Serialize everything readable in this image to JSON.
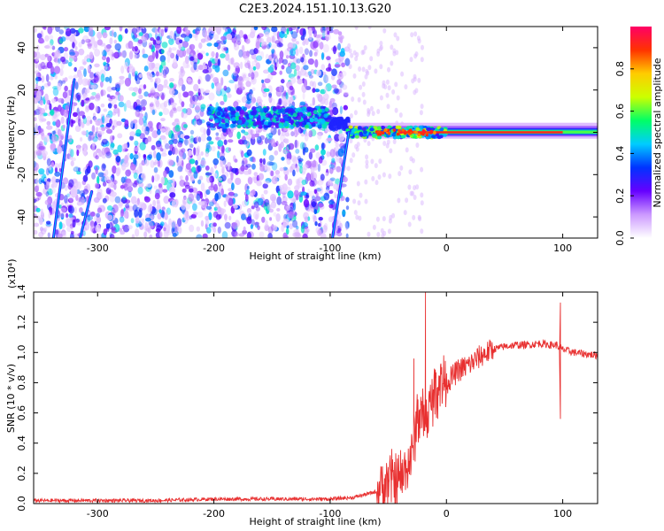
{
  "title": "C2E3.2024.151.10.13.G20",
  "chart_data": [
    {
      "type": "heatmap",
      "xlabel": "Height of straight line (km)",
      "ylabel": "Frequency (Hz)",
      "xlim": [
        -355,
        130
      ],
      "ylim": [
        -50,
        50
      ],
      "x_ticks": [
        -300,
        -200,
        -100,
        0,
        100
      ],
      "y_ticks": [
        -40,
        -20,
        0,
        20,
        40
      ],
      "colorbar": {
        "label": "Normalized spectral amplitude",
        "range": [
          0.0,
          1.0
        ],
        "ticks": [
          0.0,
          0.2,
          0.4,
          0.6,
          0.8
        ],
        "colormap": [
          "#ffffff",
          "#cc99ff",
          "#6600ff",
          "#0033ff",
          "#00ccff",
          "#00ff66",
          "#ccff00",
          "#ffcc00",
          "#ff3300",
          "#ff0066"
        ]
      },
      "features": [
        {
          "name": "scattered noise",
          "x_range": [
            -355,
            -85
          ],
          "y_range": [
            -50,
            50
          ],
          "level": 0.15
        },
        {
          "name": "band near 7 Hz",
          "x_range": [
            -205,
            -100
          ],
          "y_center": 7,
          "level": 0.3
        },
        {
          "name": "carrier line at 0 Hz",
          "x_range": [
            -85,
            130
          ],
          "y_center": 0,
          "level": 0.9
        },
        {
          "name": "diagonal streak",
          "points": [
            [
              -338,
              -50
            ],
            [
              -320,
              25
            ]
          ]
        },
        {
          "name": "diagonal streak",
          "points": [
            [
              -315,
              -50
            ],
            [
              -305,
              -28
            ]
          ]
        },
        {
          "name": "diagonal streak",
          "points": [
            [
              -98,
              -50
            ],
            [
              -84,
              0
            ]
          ]
        }
      ]
    },
    {
      "type": "line",
      "xlabel": "Height of straight line (km)",
      "ylabel": "SNR (10 * v/v)",
      "y_multiplier_label": "(x10⁴)",
      "xlim": [
        -355,
        130
      ],
      "ylim": [
        0.0,
        1.4
      ],
      "x_ticks": [
        -300,
        -200,
        -100,
        0,
        100
      ],
      "y_ticks": [
        0.0,
        0.2,
        0.4,
        0.6,
        0.8,
        1.0,
        1.2,
        1.4
      ],
      "color": "#e83030",
      "series": [
        {
          "x": [
            -355,
            -300,
            -250,
            -200,
            -150,
            -100,
            -80,
            -60,
            -50,
            -40,
            -30,
            -25,
            -20,
            -15,
            -10,
            -5,
            0,
            10,
            20,
            30,
            40,
            50,
            60,
            70,
            80,
            90,
            95,
            97,
            100,
            110,
            120,
            130
          ],
          "y": [
            0.02,
            0.02,
            0.02,
            0.03,
            0.03,
            0.03,
            0.04,
            0.08,
            0.15,
            0.15,
            0.3,
            0.6,
            0.55,
            0.6,
            0.75,
            0.82,
            0.8,
            0.88,
            0.92,
            0.98,
            1.02,
            1.04,
            1.05,
            1.05,
            1.06,
            1.05,
            1.05,
            1.03,
            1.02,
            1.0,
            0.99,
            0.98
          ]
        }
      ],
      "annotations": [
        {
          "label": "spike",
          "x": -18,
          "y": 1.4
        },
        {
          "label": "spike",
          "x": -28,
          "y": 0.96
        },
        {
          "label": "spike",
          "x": 98,
          "y": 1.33
        },
        {
          "label": "dip",
          "x": 98,
          "y": 0.56
        }
      ]
    }
  ]
}
